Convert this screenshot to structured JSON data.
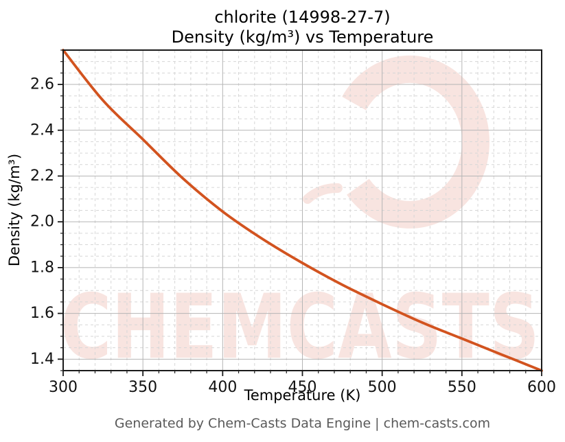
{
  "title": {
    "line1": "chlorite (14998-27-7)",
    "line2": "Density (kg/m³) vs Temperature"
  },
  "axes": {
    "xlabel": "Temperature (K)",
    "ylabel": "Density (kg/m³)"
  },
  "footer": {
    "text": "Generated by Chem-Casts Data Engine | chem-casts.com"
  },
  "watermark": {
    "text": "CHEMCASTS",
    "symbol": "c-swirl-logo",
    "color": "#d24e31",
    "opacity": 0.15
  },
  "colors": {
    "curve": "#d2531f",
    "grid_major": "#b5b5b5",
    "grid_minor": "#d6d6d6",
    "spine": "#1a1a1a",
    "tick": "#1a1a1a",
    "footer_text": "#595959"
  },
  "chart_data": {
    "type": "line",
    "title": "chlorite (14998-27-7) Density (kg/m³) vs Temperature",
    "xlabel": "Temperature (K)",
    "ylabel": "Density (kg/m³)",
    "xlim": [
      300,
      600
    ],
    "ylim": [
      1.35,
      2.75
    ],
    "xticks": [
      300,
      350,
      400,
      450,
      500,
      550,
      600
    ],
    "xtick_minor_step": 10,
    "yticks": [
      1.4,
      1.6,
      1.8,
      2.0,
      2.2,
      2.4,
      2.6
    ],
    "ytick_minor_step": 0.05,
    "grid": true,
    "legend": "none",
    "series": [
      {
        "name": "Density",
        "color": "#d2531f",
        "x": [
          300,
          325,
          350,
          375,
          400,
          425,
          450,
          475,
          500,
          525,
          550,
          575,
          600
        ],
        "y": [
          2.75,
          2.53,
          2.36,
          2.19,
          2.045,
          1.925,
          1.82,
          1.725,
          1.64,
          1.56,
          1.49,
          1.42,
          1.35
        ]
      }
    ]
  }
}
